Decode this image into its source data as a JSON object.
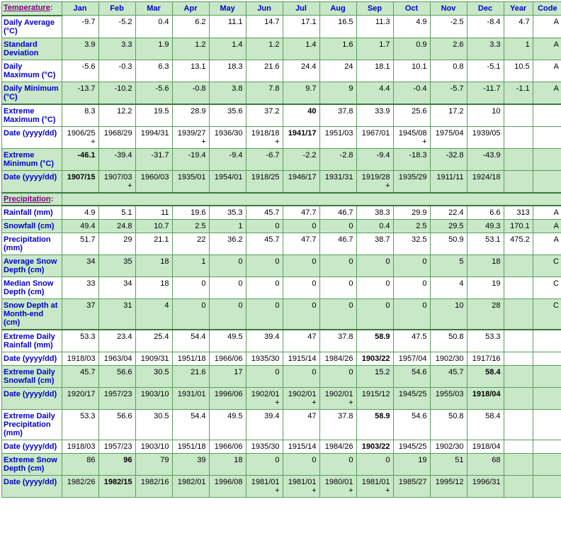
{
  "columns": [
    "Jan",
    "Feb",
    "Mar",
    "Apr",
    "May",
    "Jun",
    "Jul",
    "Aug",
    "Sep",
    "Oct",
    "Nov",
    "Dec",
    "Year",
    "Code"
  ],
  "sections": [
    {
      "title": "Temperature",
      "rows": [
        {
          "label": "Daily Average (°C)",
          "parity": "odd",
          "vals": [
            "-9.7",
            "-5.2",
            "0.4",
            "6.2",
            "11.1",
            "14.7",
            "17.1",
            "16.5",
            "11.3",
            "4.9",
            "-2.5",
            "-8.4",
            "4.7",
            "A"
          ]
        },
        {
          "label": "Standard Deviation",
          "parity": "even",
          "vals": [
            "3.9",
            "3.3",
            "1.9",
            "1.2",
            "1.4",
            "1.2",
            "1.4",
            "1.6",
            "1.7",
            "0.9",
            "2.6",
            "3.3",
            "1",
            "A"
          ]
        },
        {
          "label": "Daily Maximum (°C)",
          "parity": "odd",
          "vals": [
            "-5.6",
            "-0.3",
            "6.3",
            "13.1",
            "18.3",
            "21.6",
            "24.4",
            "24",
            "18.1",
            "10.1",
            "0.8",
            "-5.1",
            "10.5",
            "A"
          ]
        },
        {
          "label": "Daily Minimum (°C)",
          "parity": "even",
          "heavy": true,
          "vals": [
            "-13.7",
            "-10.2",
            "-5.6",
            "-0.8",
            "3.8",
            "7.8",
            "9.7",
            "9",
            "4.4",
            "-0.4",
            "-5.7",
            "-11.7",
            "-1.1",
            "A"
          ]
        },
        {
          "label": "Extreme Maximum (°C)",
          "parity": "odd",
          "vals": [
            "8.3",
            "12.2",
            "19.5",
            "28.9",
            "35.6",
            "37.2",
            "40",
            "37.8",
            "33.9",
            "25.6",
            "17.2",
            "10",
            "",
            ""
          ],
          "bold": [
            6
          ]
        },
        {
          "label": "Date (yyyy/dd)",
          "parity": "odd",
          "vals": [
            "1906/25+",
            "1968/29",
            "1994/31",
            "1939/27+",
            "1936/30",
            "1918/18+",
            "1941/17",
            "1951/03",
            "1967/01",
            "1945/08+",
            "1975/04",
            "1939/05",
            "",
            ""
          ],
          "bold": [
            6
          ]
        },
        {
          "label": "Extreme Minimum (°C)",
          "parity": "even",
          "vals": [
            "-46.1",
            "-39.4",
            "-31.7",
            "-19.4",
            "-9.4",
            "-6.7",
            "-2.2",
            "-2.8",
            "-9.4",
            "-18.3",
            "-32.8",
            "-43.9",
            "",
            ""
          ],
          "bold": [
            0
          ]
        },
        {
          "label": "Date (yyyy/dd)",
          "parity": "even",
          "heavy": true,
          "vals": [
            "1907/15",
            "1907/03+",
            "1960/03",
            "1935/01",
            "1954/01",
            "1918/25",
            "1946/17",
            "1931/31",
            "1919/28+",
            "1935/29",
            "1911/11",
            "1924/18",
            "",
            ""
          ],
          "bold": [
            0
          ]
        }
      ]
    },
    {
      "title": "Precipitation",
      "rows": [
        {
          "label": "Rainfall (mm)",
          "parity": "odd",
          "vals": [
            "4.9",
            "5.1",
            "11",
            "19.6",
            "35.3",
            "45.7",
            "47.7",
            "46.7",
            "38.3",
            "29.9",
            "22.4",
            "6.6",
            "313",
            "A"
          ]
        },
        {
          "label": "Snowfall (cm)",
          "parity": "even",
          "vals": [
            "49.4",
            "24.8",
            "10.7",
            "2.5",
            "1",
            "0",
            "0",
            "0",
            "0.4",
            "2.5",
            "29.5",
            "49.3",
            "170.1",
            "A"
          ]
        },
        {
          "label": "Precipitation (mm)",
          "parity": "odd",
          "vals": [
            "51.7",
            "29",
            "21.1",
            "22",
            "36.2",
            "45.7",
            "47.7",
            "46.7",
            "38.7",
            "32.5",
            "50.9",
            "53.1",
            "475.2",
            "A"
          ]
        },
        {
          "label": "Average Snow Depth (cm)",
          "parity": "even",
          "vals": [
            "34",
            "35",
            "18",
            "1",
            "0",
            "0",
            "0",
            "0",
            "0",
            "0",
            "5",
            "18",
            "",
            "C"
          ]
        },
        {
          "label": "Median Snow Depth (cm)",
          "parity": "odd",
          "vals": [
            "33",
            "34",
            "18",
            "0",
            "0",
            "0",
            "0",
            "0",
            "0",
            "0",
            "4",
            "19",
            "",
            "C"
          ]
        },
        {
          "label": "Snow Depth at Month-end (cm)",
          "parity": "even",
          "heavy": true,
          "vals": [
            "37",
            "31",
            "4",
            "0",
            "0",
            "0",
            "0",
            "0",
            "0",
            "0",
            "10",
            "28",
            "",
            "C"
          ]
        },
        {
          "label": "Extreme Daily Rainfall (mm)",
          "parity": "odd",
          "vals": [
            "53.3",
            "23.4",
            "25.4",
            "54.4",
            "49.5",
            "39.4",
            "47",
            "37.8",
            "58.9",
            "47.5",
            "50.8",
            "53.3",
            "",
            ""
          ],
          "bold": [
            8
          ]
        },
        {
          "label": "Date (yyyy/dd)",
          "parity": "odd",
          "vals": [
            "1918/03",
            "1963/04",
            "1909/31",
            "1951/18",
            "1966/06",
            "1935/30",
            "1915/14",
            "1984/26",
            "1903/22",
            "1957/04",
            "1902/30",
            "1917/16",
            "",
            ""
          ],
          "bold": [
            8
          ]
        },
        {
          "label": "Extreme Daily Snowfall (cm)",
          "parity": "even",
          "vals": [
            "45.7",
            "56.6",
            "30.5",
            "21.6",
            "17",
            "0",
            "0",
            "0",
            "15.2",
            "54.6",
            "45.7",
            "58.4",
            "",
            ""
          ],
          "bold": [
            11
          ]
        },
        {
          "label": "Date (yyyy/dd)",
          "parity": "even",
          "vals": [
            "1920/17",
            "1957/23",
            "1903/10",
            "1931/01",
            "1996/06",
            "1902/01+",
            "1902/01+",
            "1902/01+",
            "1915/12",
            "1945/25",
            "1955/03",
            "1918/04",
            "",
            ""
          ],
          "bold": [
            11
          ]
        },
        {
          "label": "Extreme Daily Precipitation (mm)",
          "parity": "odd",
          "vals": [
            "53.3",
            "56.6",
            "30.5",
            "54.4",
            "49.5",
            "39.4",
            "47",
            "37.8",
            "58.9",
            "54.6",
            "50.8",
            "58.4",
            "",
            ""
          ],
          "bold": [
            8
          ]
        },
        {
          "label": "Date (yyyy/dd)",
          "parity": "odd",
          "vals": [
            "1918/03",
            "1957/23",
            "1903/10",
            "1951/18",
            "1966/06",
            "1935/30",
            "1915/14",
            "1984/26",
            "1903/22",
            "1945/25",
            "1902/30",
            "1918/04",
            "",
            ""
          ],
          "bold": [
            8
          ]
        },
        {
          "label": "Extreme Snow Depth (cm)",
          "parity": "even",
          "vals": [
            "86",
            "96",
            "79",
            "39",
            "18",
            "0",
            "0",
            "0",
            "0",
            "19",
            "51",
            "68",
            "",
            ""
          ],
          "bold": [
            1
          ]
        },
        {
          "label": "Date (yyyy/dd)",
          "parity": "even",
          "vals": [
            "1982/26",
            "1982/15",
            "1982/16",
            "1982/01",
            "1996/08",
            "1981/01+",
            "1981/01+",
            "1980/01+",
            "1981/01+",
            "1985/27",
            "1995/12",
            "1996/31",
            "",
            ""
          ],
          "bold": [
            1
          ]
        }
      ]
    }
  ]
}
